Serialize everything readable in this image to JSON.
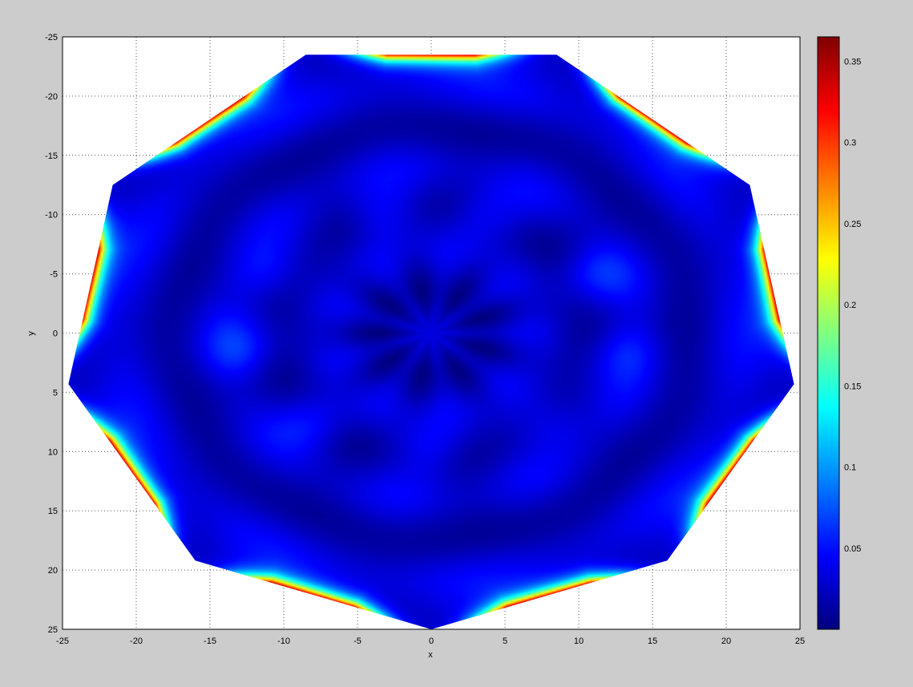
{
  "chart_data": {
    "type": "heatmap",
    "title": "",
    "xlabel": "x",
    "ylabel": "y",
    "xlim": [
      -25,
      25
    ],
    "ylim": [
      -25,
      25
    ],
    "y_direction": "reversed",
    "grid": true,
    "colormap": "jet",
    "x_ticks": [
      "-25",
      "-20",
      "-15",
      "-10",
      "-5",
      "0",
      "5",
      "10",
      "15",
      "20",
      "25"
    ],
    "y_ticks": [
      "-25",
      "-20",
      "-15",
      "-10",
      "-5",
      "0",
      "5",
      "10",
      "15",
      "20",
      "25"
    ],
    "colorbar": {
      "range": [
        0,
        0.365
      ],
      "ticks": [
        "0.05",
        "0.1",
        "0.15",
        "0.2",
        "0.25",
        "0.3",
        "0.35"
      ]
    },
    "region_vertices": [
      [
        -8.5,
        -23.5
      ],
      [
        8.5,
        -23.5
      ],
      [
        21.6,
        -12.5
      ],
      [
        24.6,
        4.3
      ],
      [
        16.0,
        19.2
      ],
      [
        0.0,
        25.0
      ],
      [
        -16.0,
        19.2
      ],
      [
        -24.6,
        4.3
      ],
      [
        -21.6,
        -12.5
      ]
    ],
    "field_description_values": {
      "background_level": 0.04,
      "edge_peak_level": 0.36,
      "bright_spots": [
        [
          -3.5,
          -10
        ],
        [
          3.5,
          -10
        ],
        [
          -11,
          -5
        ],
        [
          11,
          -5
        ],
        [
          -13,
          1.5
        ],
        [
          13,
          1.5
        ],
        [
          -8,
          7.5
        ],
        [
          8,
          7.5
        ],
        [
          0,
          10
        ]
      ]
    }
  }
}
